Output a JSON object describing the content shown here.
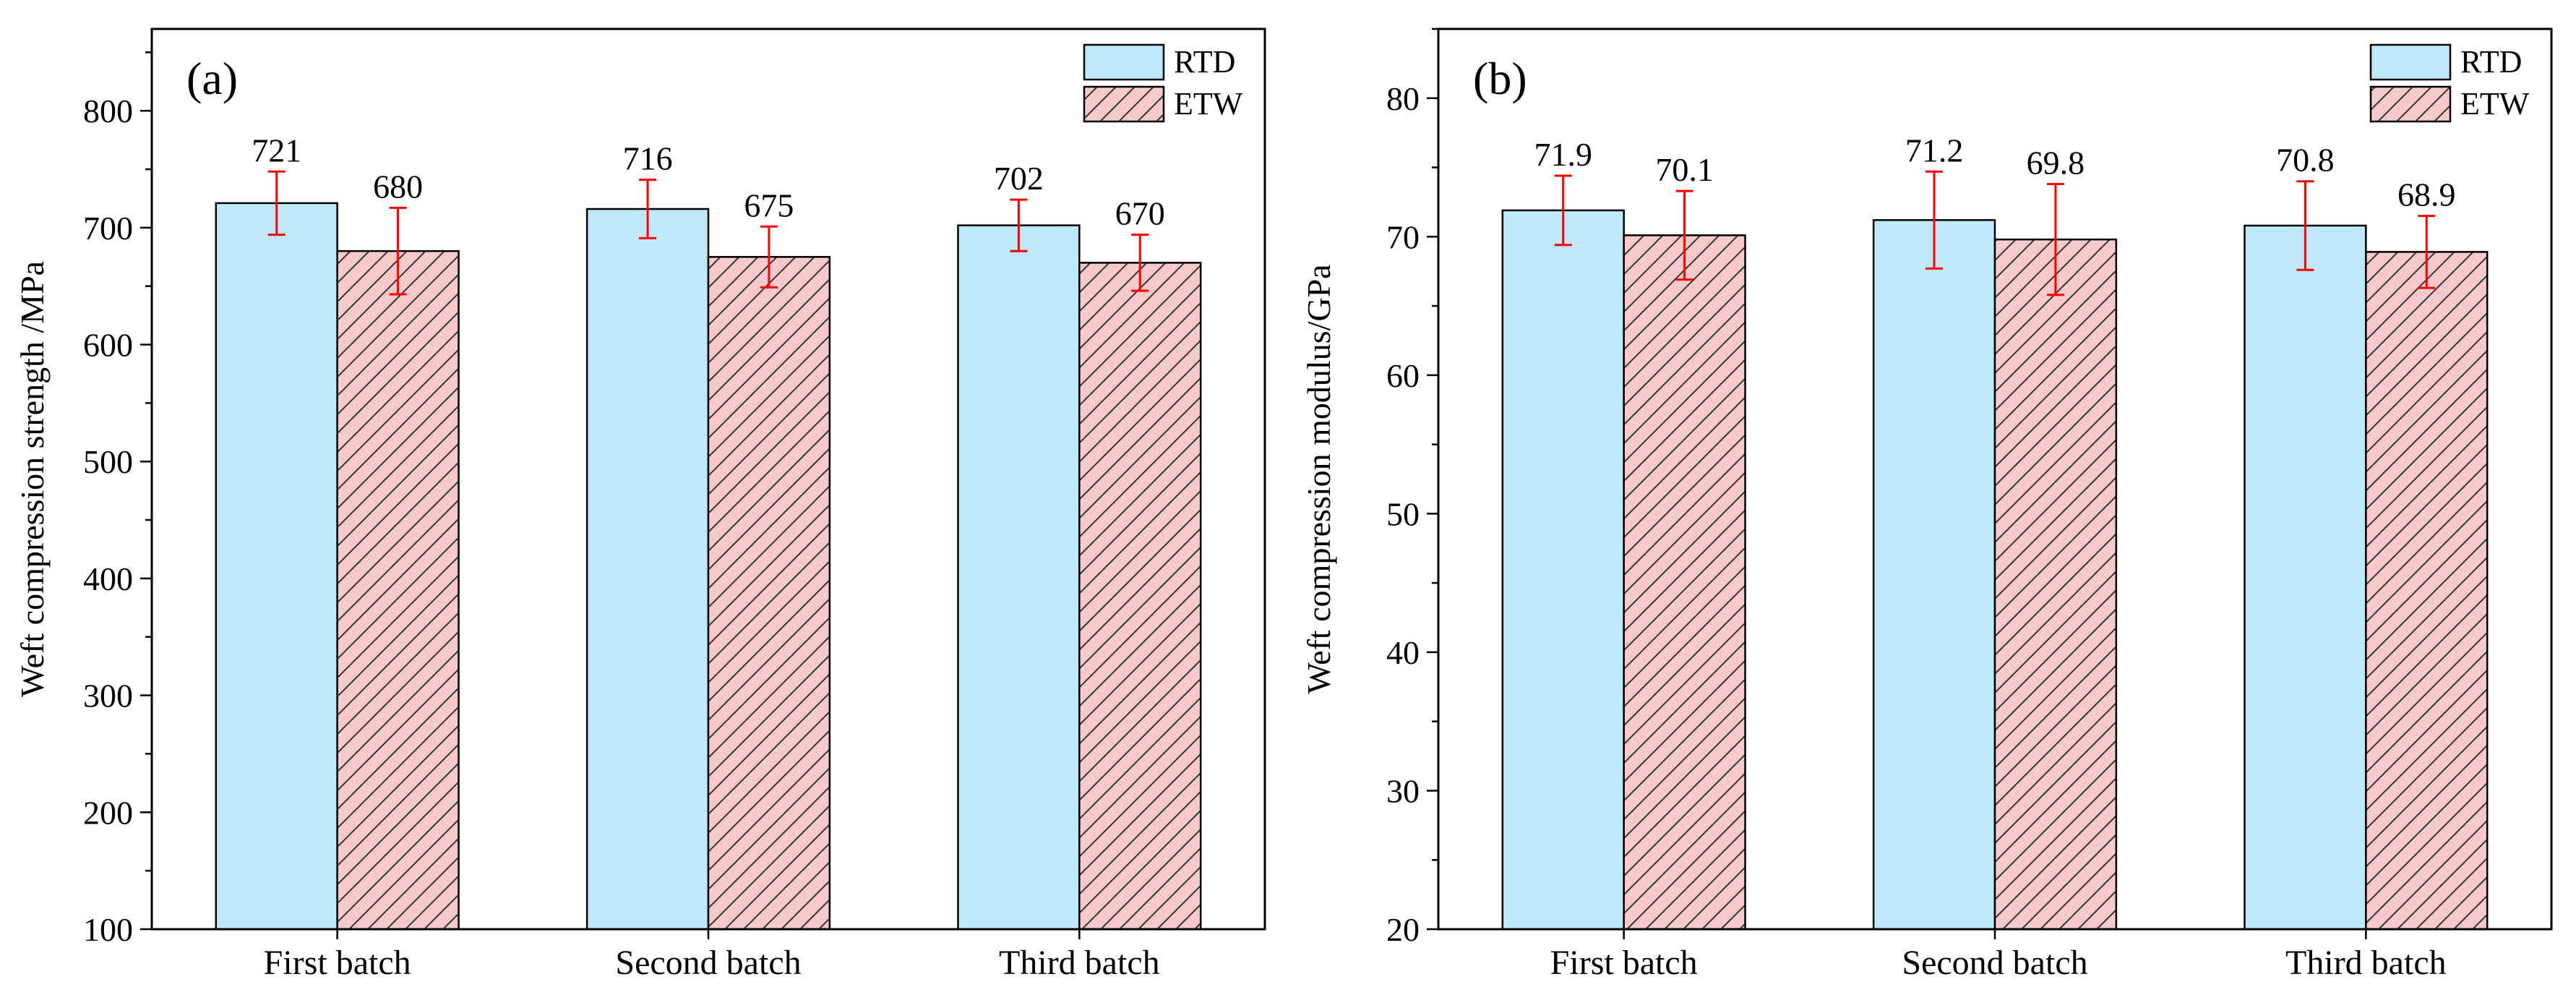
{
  "colors": {
    "rtd_fill": "#bde9f9",
    "etw_fill": "#f6c9ca",
    "hatch": "#333333",
    "error_bar": "#ff0000",
    "axis": "#000000"
  },
  "chart_data": [
    {
      "type": "bar",
      "panel_label": "(a)",
      "categories": [
        "First batch",
        "Second batch",
        "Third batch"
      ],
      "series": [
        {
          "name": "RTD",
          "values": [
            721,
            716,
            702
          ],
          "errors": [
            27,
            25,
            22
          ],
          "labels": [
            "721",
            "716",
            "702"
          ]
        },
        {
          "name": "ETW",
          "values": [
            680,
            675,
            670
          ],
          "errors": [
            37,
            26,
            24
          ],
          "labels": [
            "680",
            "675",
            "670"
          ]
        }
      ],
      "xlabel": "",
      "ylabel": "Weft compression strength /MPa",
      "ylim": [
        100,
        870
      ],
      "yticks": [
        100,
        200,
        300,
        400,
        500,
        600,
        700,
        800
      ],
      "ytick_labels": [
        "100",
        "200",
        "300",
        "400",
        "500",
        "600",
        "700",
        "800"
      ],
      "legend": [
        "RTD",
        "ETW"
      ],
      "legend_position": "top-right"
    },
    {
      "type": "bar",
      "panel_label": "(b)",
      "categories": [
        "First batch",
        "Second batch",
        "Third batch"
      ],
      "series": [
        {
          "name": "RTD",
          "values": [
            71.9,
            71.2,
            70.8
          ],
          "errors": [
            2.5,
            3.5,
            3.2
          ],
          "labels": [
            "71.9",
            "71.2",
            "70.8"
          ]
        },
        {
          "name": "ETW",
          "values": [
            70.1,
            69.8,
            68.9
          ],
          "errors": [
            3.2,
            4.0,
            2.6
          ],
          "labels": [
            "70.1",
            "69.8",
            "68.9"
          ]
        }
      ],
      "xlabel": "",
      "ylabel": "Weft compression modulus/GPa",
      "ylim": [
        20,
        85
      ],
      "yticks": [
        20,
        30,
        40,
        50,
        60,
        70,
        80
      ],
      "ytick_labels": [
        "20",
        "30",
        "40",
        "50",
        "60",
        "70",
        "80"
      ],
      "legend": [
        "RTD",
        "ETW"
      ],
      "legend_position": "top-right"
    }
  ]
}
